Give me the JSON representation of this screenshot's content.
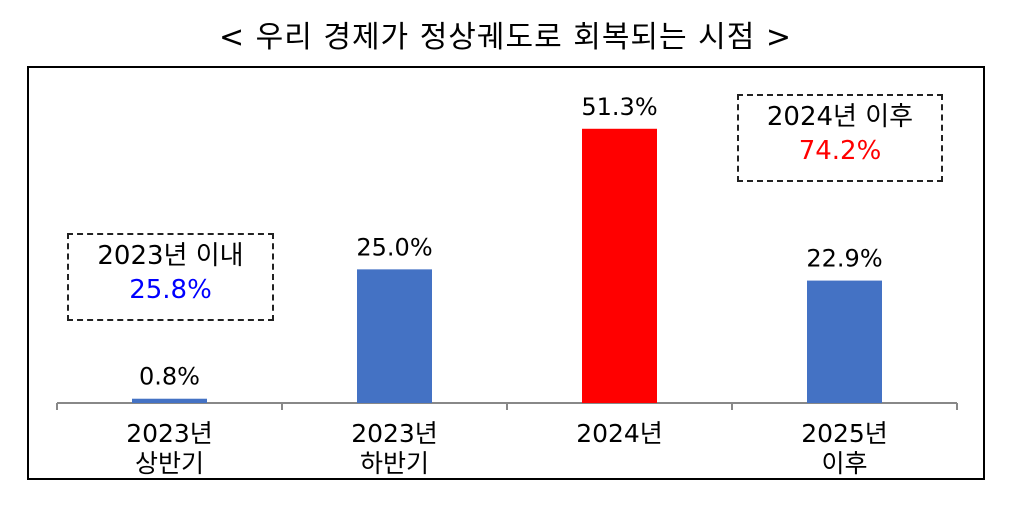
{
  "title": "< 우리 경제가 정상궤도로 회복되는 시점 >",
  "chart_data": {
    "type": "bar",
    "title": "< 우리 경제가 정상궤도로 회복되는 시점 >",
    "categories": [
      [
        "2023년",
        "상반기"
      ],
      [
        "2023년",
        "하반기"
      ],
      [
        "2024년"
      ],
      [
        "2025년",
        "이후"
      ]
    ],
    "values": [
      0.8,
      25.0,
      51.3,
      22.9
    ],
    "value_labels": [
      "0.8%",
      "25.0%",
      "51.3%",
      "22.9%"
    ],
    "bar_colors": [
      "#4472C4",
      "#4472C4",
      "#FF0000",
      "#4472C4"
    ],
    "ylim": [
      0,
      55
    ],
    "grid": false,
    "legend": "none"
  },
  "callouts": {
    "left": {
      "label": "2023년 이내",
      "value": "25.8%",
      "value_color": "#0000FF"
    },
    "right": {
      "label": "2024년 이후",
      "value": "74.2%",
      "value_color": "#FF0000"
    }
  }
}
